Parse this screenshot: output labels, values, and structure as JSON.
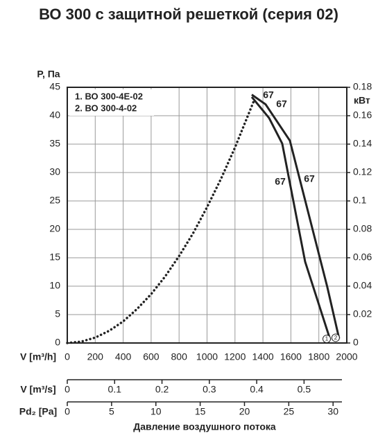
{
  "chart_data": {
    "type": "line",
    "title": "ВО 300 с защитной решеткой (серия 02)",
    "y_label": "P, Па",
    "y2_label": "кВт",
    "x_label": "V [m³/h]",
    "xlim": [
      0,
      2000
    ],
    "xticks": [
      0,
      200,
      400,
      600,
      800,
      1000,
      1200,
      1400,
      1600,
      1800,
      2000
    ],
    "ylim": [
      0,
      45
    ],
    "yticks": [
      0,
      5,
      10,
      15,
      20,
      25,
      30,
      35,
      40,
      45
    ],
    "y2lim": [
      0,
      0.18
    ],
    "y2ticks": [
      0,
      0.02,
      0.04,
      0.06,
      0.08,
      0.1,
      0.12,
      0.14,
      0.16,
      0.18
    ],
    "grid": true,
    "legend": "upper left",
    "series": [
      {
        "name": "1. ВО 300-4Е-02",
        "end_label": "1",
        "color": "#222222",
        "x": [
          1320,
          1444,
          1538,
          1702,
          1881
        ],
        "values": [
          43.3,
          39.6,
          35.1,
          14.3,
          0.6
        ]
      },
      {
        "name": "2. ВО 300-4-02",
        "end_label": "2",
        "color": "#222222",
        "x": [
          1320,
          1419,
          1593,
          1861,
          1945
        ],
        "values": [
          43.7,
          42,
          35.6,
          9.8,
          0.8
        ]
      }
    ],
    "system_curve": {
      "color": "#222222",
      "x": [
        0,
        100,
        200,
        300,
        400,
        500,
        600,
        700,
        800,
        900,
        1000,
        1100,
        1200,
        1340
      ],
      "values": [
        0,
        0.24,
        0.95,
        2.15,
        3.8,
        6,
        8.6,
        11.7,
        15.3,
        19.3,
        23.9,
        28.9,
        34.4,
        42.9
      ]
    },
    "annotations": [
      "67",
      "67",
      "67",
      "67"
    ],
    "secondary_axes": [
      {
        "label": "V [m³/s]",
        "xlim": [
          0,
          0.58
        ],
        "xticks": [
          0,
          0.1,
          0.2,
          0.3,
          0.4,
          0.5
        ]
      },
      {
        "label": "Pd₂ [Pa]",
        "xlim": [
          0,
          31
        ],
        "xticks": [
          0,
          5,
          10,
          15,
          20,
          25,
          30
        ]
      }
    ],
    "footer": "Давление воздушного потока"
  }
}
